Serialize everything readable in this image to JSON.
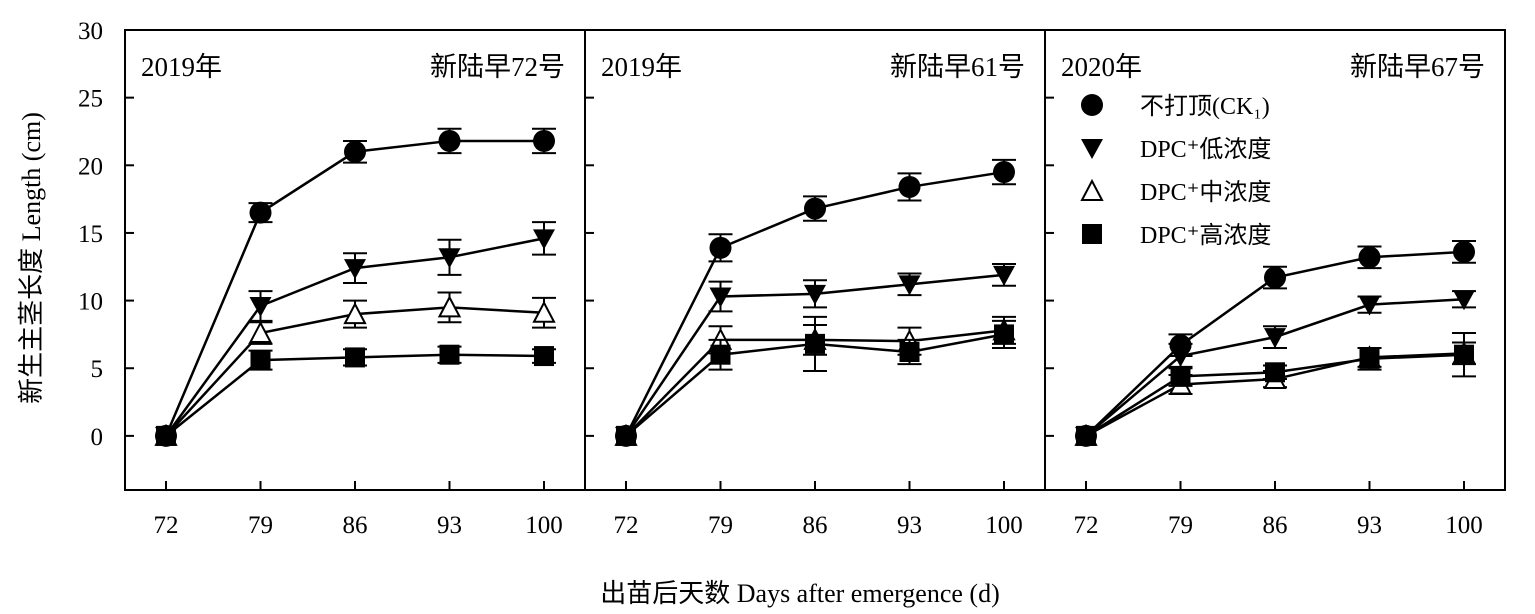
{
  "chart_data": {
    "type": "line",
    "ylabel": "新生主茎长度 Length (cm)",
    "xlabel": "出苗后天数 Days after emergence (d)",
    "x": [
      72,
      79,
      86,
      93,
      100
    ],
    "x_ticks": [
      "72",
      "79",
      "86",
      "93",
      "100"
    ],
    "ylim": [
      -4,
      30
    ],
    "y_ticks": [
      "0",
      "5",
      "10",
      "15",
      "20",
      "25",
      "30"
    ],
    "grid": false,
    "legend": {
      "placement": "right panel, upper-left",
      "entries": [
        {
          "marker": "filled-circle",
          "label": "不打顶(CK₁)"
        },
        {
          "marker": "filled-triangle-down",
          "label": "DPC⁺低浓度"
        },
        {
          "marker": "open-triangle-up",
          "label": "DPC⁺中浓度"
        },
        {
          "marker": "filled-square",
          "label": "DPC⁺高浓度"
        }
      ]
    },
    "panels": [
      {
        "year": "2019年",
        "variety": "新陆早72号",
        "series": [
          {
            "marker": "filled-circle",
            "values": [
              0,
              16.5,
              21.0,
              21.8,
              21.8
            ],
            "errors": [
              0,
              0.7,
              0.8,
              0.9,
              0.9
            ]
          },
          {
            "marker": "filled-triangle-down",
            "values": [
              0,
              9.6,
              12.4,
              13.2,
              14.6
            ],
            "errors": [
              0,
              1.1,
              1.1,
              1.3,
              1.2
            ]
          },
          {
            "marker": "open-triangle-up",
            "values": [
              0,
              7.6,
              9.0,
              9.5,
              9.1
            ],
            "errors": [
              0,
              0.8,
              1.0,
              1.1,
              1.1
            ]
          },
          {
            "marker": "filled-square",
            "values": [
              0,
              5.6,
              5.8,
              6.0,
              5.9
            ],
            "errors": [
              0,
              0.7,
              0.6,
              0.6,
              0.5
            ]
          }
        ]
      },
      {
        "year": "2019年",
        "variety": "新陆早61号",
        "series": [
          {
            "marker": "filled-circle",
            "values": [
              0,
              13.9,
              16.8,
              18.4,
              19.5
            ],
            "errors": [
              0,
              1.0,
              0.9,
              1.0,
              0.9
            ]
          },
          {
            "marker": "filled-triangle-down",
            "values": [
              0,
              10.3,
              10.5,
              11.2,
              11.9
            ],
            "errors": [
              0,
              1.1,
              1.0,
              0.8,
              0.8
            ]
          },
          {
            "marker": "open-triangle-up",
            "values": [
              0,
              7.1,
              7.1,
              7.0,
              7.8
            ],
            "errors": [
              0,
              1.0,
              1.1,
              1.0,
              1.0
            ]
          },
          {
            "marker": "filled-square",
            "values": [
              0,
              6.0,
              6.8,
              6.2,
              7.5
            ],
            "errors": [
              0,
              1.1,
              2.0,
              0.9,
              1.0
            ]
          }
        ]
      },
      {
        "year": "2020年",
        "variety": "新陆早67号",
        "series": [
          {
            "marker": "filled-circle",
            "values": [
              0,
              6.7,
              11.7,
              13.2,
              13.6
            ],
            "errors": [
              0,
              0.8,
              0.8,
              0.8,
              0.8
            ]
          },
          {
            "marker": "filled-triangle-down",
            "values": [
              0,
              5.9,
              7.3,
              9.7,
              10.1
            ],
            "errors": [
              0,
              0.9,
              0.8,
              0.6,
              0.6
            ]
          },
          {
            "marker": "open-triangle-up",
            "values": [
              0,
              3.8,
              4.2,
              5.8,
              6.1
            ],
            "errors": [
              0,
              0.7,
              0.6,
              0.7,
              0.8
            ]
          },
          {
            "marker": "filled-square",
            "values": [
              0,
              4.4,
              4.7,
              5.7,
              6.0
            ],
            "errors": [
              0,
              0.7,
              0.5,
              0.8,
              1.6
            ]
          }
        ]
      }
    ]
  }
}
